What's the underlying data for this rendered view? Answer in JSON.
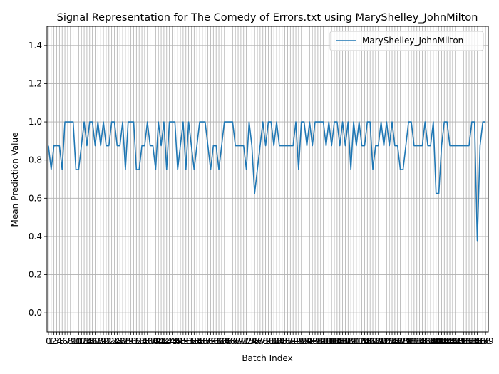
{
  "chart_data": {
    "type": "line",
    "title": "Signal Representation for The Comedy of Errors.txt using MaryShelley_JohnMilton",
    "xlabel": "Batch Index",
    "ylabel": "Mean Prediction Value",
    "xlim": [
      -0.5,
      160.0
    ],
    "ylim": [
      -0.1,
      1.5
    ],
    "yticks": [
      0.0,
      0.2,
      0.4,
      0.6,
      0.8,
      1.0,
      1.2,
      1.4
    ],
    "grid": true,
    "legend_position": "top-right",
    "series": [
      {
        "name": "MaryShelley_JohnMilton",
        "color": "#1f77b4",
        "values": [
          0.875,
          0.75,
          0.875,
          0.875,
          0.875,
          0.75,
          1.0,
          1.0,
          1.0,
          1.0,
          0.75,
          0.75,
          0.875,
          1.0,
          0.875,
          1.0,
          1.0,
          0.875,
          1.0,
          0.875,
          1.0,
          0.875,
          0.875,
          1.0,
          1.0,
          0.875,
          0.875,
          1.0,
          0.75,
          1.0,
          1.0,
          1.0,
          0.75,
          0.75,
          0.875,
          0.875,
          1.0,
          0.875,
          0.875,
          0.75,
          1.0,
          0.875,
          1.0,
          0.75,
          1.0,
          1.0,
          1.0,
          0.75,
          0.875,
          1.0,
          0.75,
          1.0,
          0.875,
          0.75,
          0.875,
          1.0,
          1.0,
          1.0,
          0.875,
          0.75,
          0.875,
          0.875,
          0.75,
          0.875,
          1.0,
          1.0,
          1.0,
          1.0,
          0.875,
          0.875,
          0.875,
          0.875,
          0.75,
          1.0,
          0.875,
          0.625,
          0.75,
          0.875,
          1.0,
          0.875,
          1.0,
          1.0,
          0.875,
          1.0,
          0.875,
          0.875,
          0.875,
          0.875,
          0.875,
          0.875,
          1.0,
          0.75,
          1.0,
          1.0,
          0.875,
          1.0,
          0.875,
          1.0,
          1.0,
          1.0,
          1.0,
          0.875,
          1.0,
          0.875,
          1.0,
          1.0,
          0.875,
          1.0,
          0.875,
          1.0,
          0.75,
          1.0,
          0.875,
          1.0,
          0.875,
          0.875,
          1.0,
          1.0,
          0.75,
          0.875,
          0.875,
          1.0,
          0.875,
          1.0,
          0.875,
          1.0,
          0.875,
          0.875,
          0.75,
          0.75,
          0.875,
          1.0,
          1.0,
          0.875,
          0.875,
          0.875,
          0.875,
          1.0,
          0.875,
          0.875,
          1.0,
          0.625,
          0.625,
          0.875,
          1.0,
          1.0,
          0.875,
          0.875,
          0.875,
          0.875,
          0.875,
          0.875,
          0.875,
          0.875,
          1.0,
          1.0,
          0.375,
          0.875,
          1.0,
          1.0
        ]
      }
    ]
  }
}
